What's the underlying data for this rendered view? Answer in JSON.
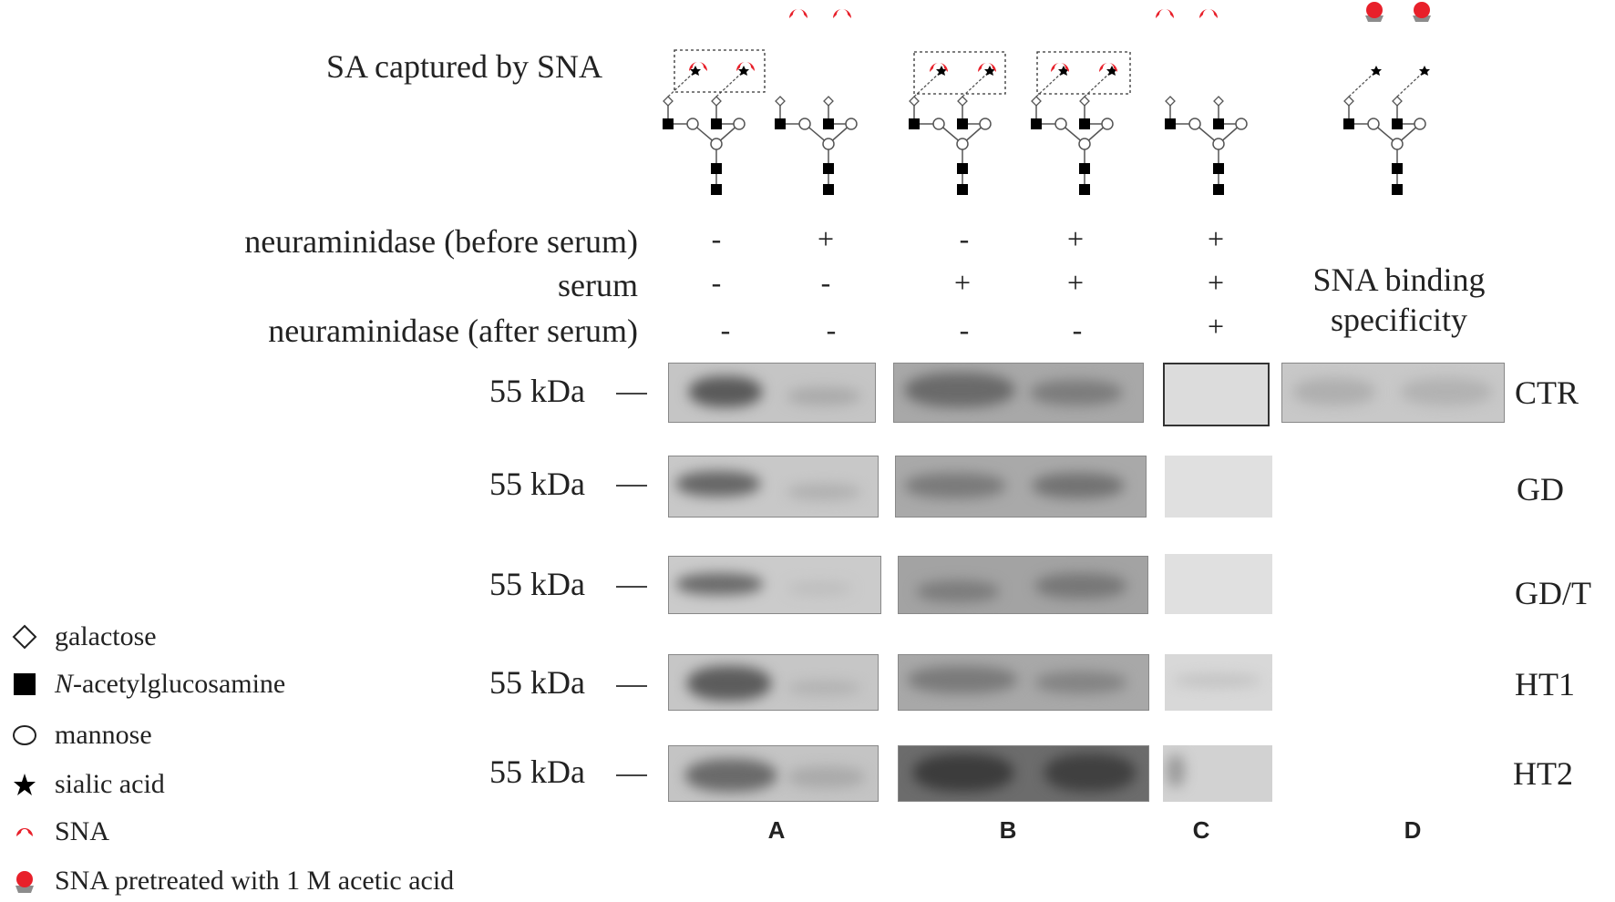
{
  "header": {
    "sa_captured_label": "SA captured by SNA",
    "specificity_label_line1": "SNA binding",
    "specificity_label_line2": "specificity"
  },
  "conditions": {
    "rows": [
      {
        "label": "neuraminidase (before serum)",
        "values": [
          "-",
          "+",
          "-",
          "+",
          "+"
        ]
      },
      {
        "label": "serum",
        "values": [
          "-",
          "-",
          "+",
          "+",
          "+"
        ]
      },
      {
        "label": "neuraminidase (after serum)",
        "values": [
          "-",
          "-",
          "-",
          "-",
          "+"
        ]
      }
    ]
  },
  "blots": {
    "marker_label": "55 kDa",
    "samples": [
      "CTR",
      "GD",
      "GD/T",
      "HT1",
      "HT2"
    ]
  },
  "panels": [
    "A",
    "B",
    "C",
    "D"
  ],
  "legend": {
    "items": [
      {
        "icon": "diamond-icon",
        "label": "galactose",
        "italic_prefix": ""
      },
      {
        "icon": "square-icon",
        "label": "-acetylglucosamine",
        "italic_prefix": "N"
      },
      {
        "icon": "circle-icon",
        "label": "mannose",
        "italic_prefix": ""
      },
      {
        "icon": "star-icon",
        "label": "sialic acid",
        "italic_prefix": ""
      },
      {
        "icon": "sna-icon",
        "label": "SNA",
        "italic_prefix": ""
      },
      {
        "icon": "sna-acid-icon",
        "label": "SNA pretreated with 1 M acetic acid",
        "italic_prefix": ""
      }
    ]
  },
  "colors": {
    "sna_red": "#e8202a",
    "acid_gray": "#8c8c8c",
    "blot_bg": "#c8c8c8",
    "band_dark": "#5e5e5e"
  }
}
